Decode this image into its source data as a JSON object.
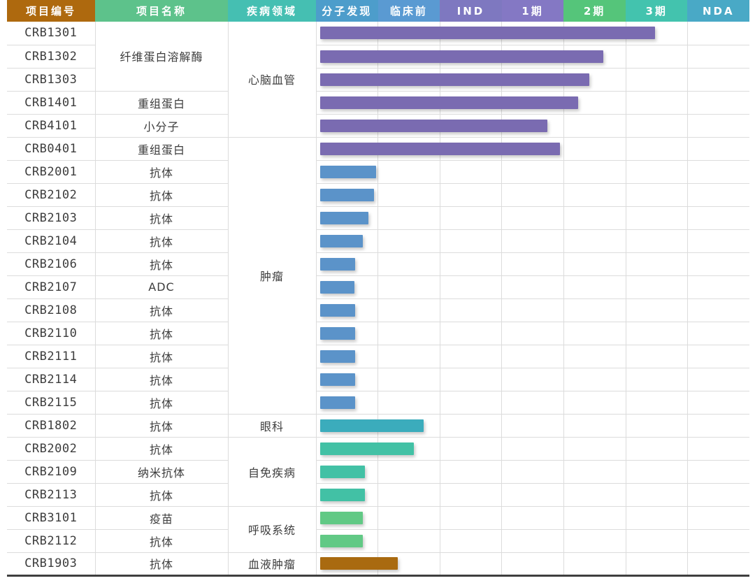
{
  "table_title": "",
  "header": {
    "columns": [
      {
        "label": "项目编号",
        "bg": "#AE690E",
        "type": "info"
      },
      {
        "label": "项目名称",
        "bg": "#5DC28B",
        "type": "info"
      },
      {
        "label": "疾病领域",
        "bg": "#45BFB2",
        "type": "info"
      },
      {
        "label": "分子发现",
        "bg": "#4D9DCB",
        "type": "stage"
      },
      {
        "label": "临床前",
        "bg": "#5A9AD2",
        "type": "stage"
      },
      {
        "label": "IND",
        "bg": "#7E78C0",
        "type": "stage"
      },
      {
        "label": "1期",
        "bg": "#8478C4",
        "type": "stage"
      },
      {
        "label": "2期",
        "bg": "#55C57A",
        "type": "stage"
      },
      {
        "label": "3期",
        "bg": "#43C3AE",
        "type": "stage"
      },
      {
        "label": "NDA",
        "bg": "#49A9C6",
        "type": "stage"
      }
    ]
  },
  "colors": {
    "grid_line": "#dcdcdc",
    "bottom_rule": "#3f3f3f",
    "body_text": "#3d3d3d",
    "bar_purple": "#7A6BB1",
    "bar_blue": "#5B93C9",
    "bar_cyan": "#3BACBC",
    "bar_teal": "#42C1A5",
    "bar_green": "#61C985",
    "bar_brown": "#A96A10"
  },
  "chart_data": {
    "type": "bar",
    "orientation": "horizontal-gantt",
    "stages": [
      "分子发现",
      "临床前",
      "IND",
      "1期",
      "2期",
      "3期",
      "NDA"
    ],
    "progress_unit": "stage columns reached (0 = start of 分子发现, 7 = end of NDA)",
    "projects": [
      {
        "id": "CRB1301",
        "name": "纤维蛋白溶解酶",
        "disease": "心脑血管",
        "progress": 5.48,
        "bar_color": "#7A6BB1"
      },
      {
        "id": "CRB1302",
        "name": "纤维蛋白溶解酶",
        "disease": "心脑血管",
        "progress": 4.64,
        "bar_color": "#7A6BB1"
      },
      {
        "id": "CRB1303",
        "name": "纤维蛋白溶解酶",
        "disease": "心脑血管",
        "progress": 4.41,
        "bar_color": "#7A6BB1"
      },
      {
        "id": "CRB1401",
        "name": "重组蛋白",
        "disease": "心脑血管",
        "progress": 4.23,
        "bar_color": "#7A6BB1"
      },
      {
        "id": "CRB4101",
        "name": "小分子",
        "disease": "心脑血管",
        "progress": 3.74,
        "bar_color": "#7A6BB1"
      },
      {
        "id": "CRB0401",
        "name": "重组蛋白",
        "disease": "肿瘤",
        "progress": 3.94,
        "bar_color": "#7A6BB1"
      },
      {
        "id": "CRB2001",
        "name": "抗体",
        "disease": "肿瘤",
        "progress": 0.97,
        "bar_color": "#5B93C9"
      },
      {
        "id": "CRB2102",
        "name": "抗体",
        "disease": "肿瘤",
        "progress": 0.93,
        "bar_color": "#5B93C9"
      },
      {
        "id": "CRB2103",
        "name": "抗体",
        "disease": "肿瘤",
        "progress": 0.84,
        "bar_color": "#5B93C9"
      },
      {
        "id": "CRB2104",
        "name": "抗体",
        "disease": "肿瘤",
        "progress": 0.75,
        "bar_color": "#5B93C9"
      },
      {
        "id": "CRB2106",
        "name": "抗体",
        "disease": "肿瘤",
        "progress": 0.63,
        "bar_color": "#5B93C9"
      },
      {
        "id": "CRB2107",
        "name": "ADC",
        "disease": "肿瘤",
        "progress": 0.62,
        "bar_color": "#5B93C9"
      },
      {
        "id": "CRB2108",
        "name": "抗体",
        "disease": "肿瘤",
        "progress": 0.63,
        "bar_color": "#5B93C9"
      },
      {
        "id": "CRB2110",
        "name": "抗体",
        "disease": "肿瘤",
        "progress": 0.63,
        "bar_color": "#5B93C9"
      },
      {
        "id": "CRB2111",
        "name": "抗体",
        "disease": "肿瘤",
        "progress": 0.63,
        "bar_color": "#5B93C9"
      },
      {
        "id": "CRB2114",
        "name": "抗体",
        "disease": "肿瘤",
        "progress": 0.63,
        "bar_color": "#5B93C9"
      },
      {
        "id": "CRB2115",
        "name": "抗体",
        "disease": "肿瘤",
        "progress": 0.63,
        "bar_color": "#5B93C9"
      },
      {
        "id": "CRB1802",
        "name": "抗体",
        "disease": "眼科",
        "progress": 1.73,
        "bar_color": "#3BACBC"
      },
      {
        "id": "CRB2002",
        "name": "抗体",
        "disease": "自免疾病",
        "progress": 1.58,
        "bar_color": "#42C1A5"
      },
      {
        "id": "CRB2109",
        "name": "纳米抗体",
        "disease": "自免疾病",
        "progress": 0.79,
        "bar_color": "#42C1A5"
      },
      {
        "id": "CRB2113",
        "name": "抗体",
        "disease": "自免疾病",
        "progress": 0.79,
        "bar_color": "#42C1A5"
      },
      {
        "id": "CRB3101",
        "name": "疫苗",
        "disease": "呼吸系统",
        "progress": 0.75,
        "bar_color": "#61C985"
      },
      {
        "id": "CRB2112",
        "name": "抗体",
        "disease": "呼吸系统",
        "progress": 0.75,
        "bar_color": "#61C985"
      },
      {
        "id": "CRB1903",
        "name": "抗体",
        "disease": "血液肿瘤",
        "progress": 1.32,
        "bar_color": "#A96A10"
      }
    ],
    "name_merges": [
      {
        "start": 0,
        "span": 3
      }
    ],
    "disease_merges": [
      {
        "start": 0,
        "span": 5,
        "label": "心脑血管"
      },
      {
        "start": 5,
        "span": 12,
        "label": "肿瘤"
      },
      {
        "start": 17,
        "span": 1,
        "label": "眼科"
      },
      {
        "start": 18,
        "span": 3,
        "label": "自免疾病"
      },
      {
        "start": 21,
        "span": 2,
        "label": "呼吸系统"
      },
      {
        "start": 23,
        "span": 1,
        "label": "血液肿瘤"
      }
    ]
  }
}
